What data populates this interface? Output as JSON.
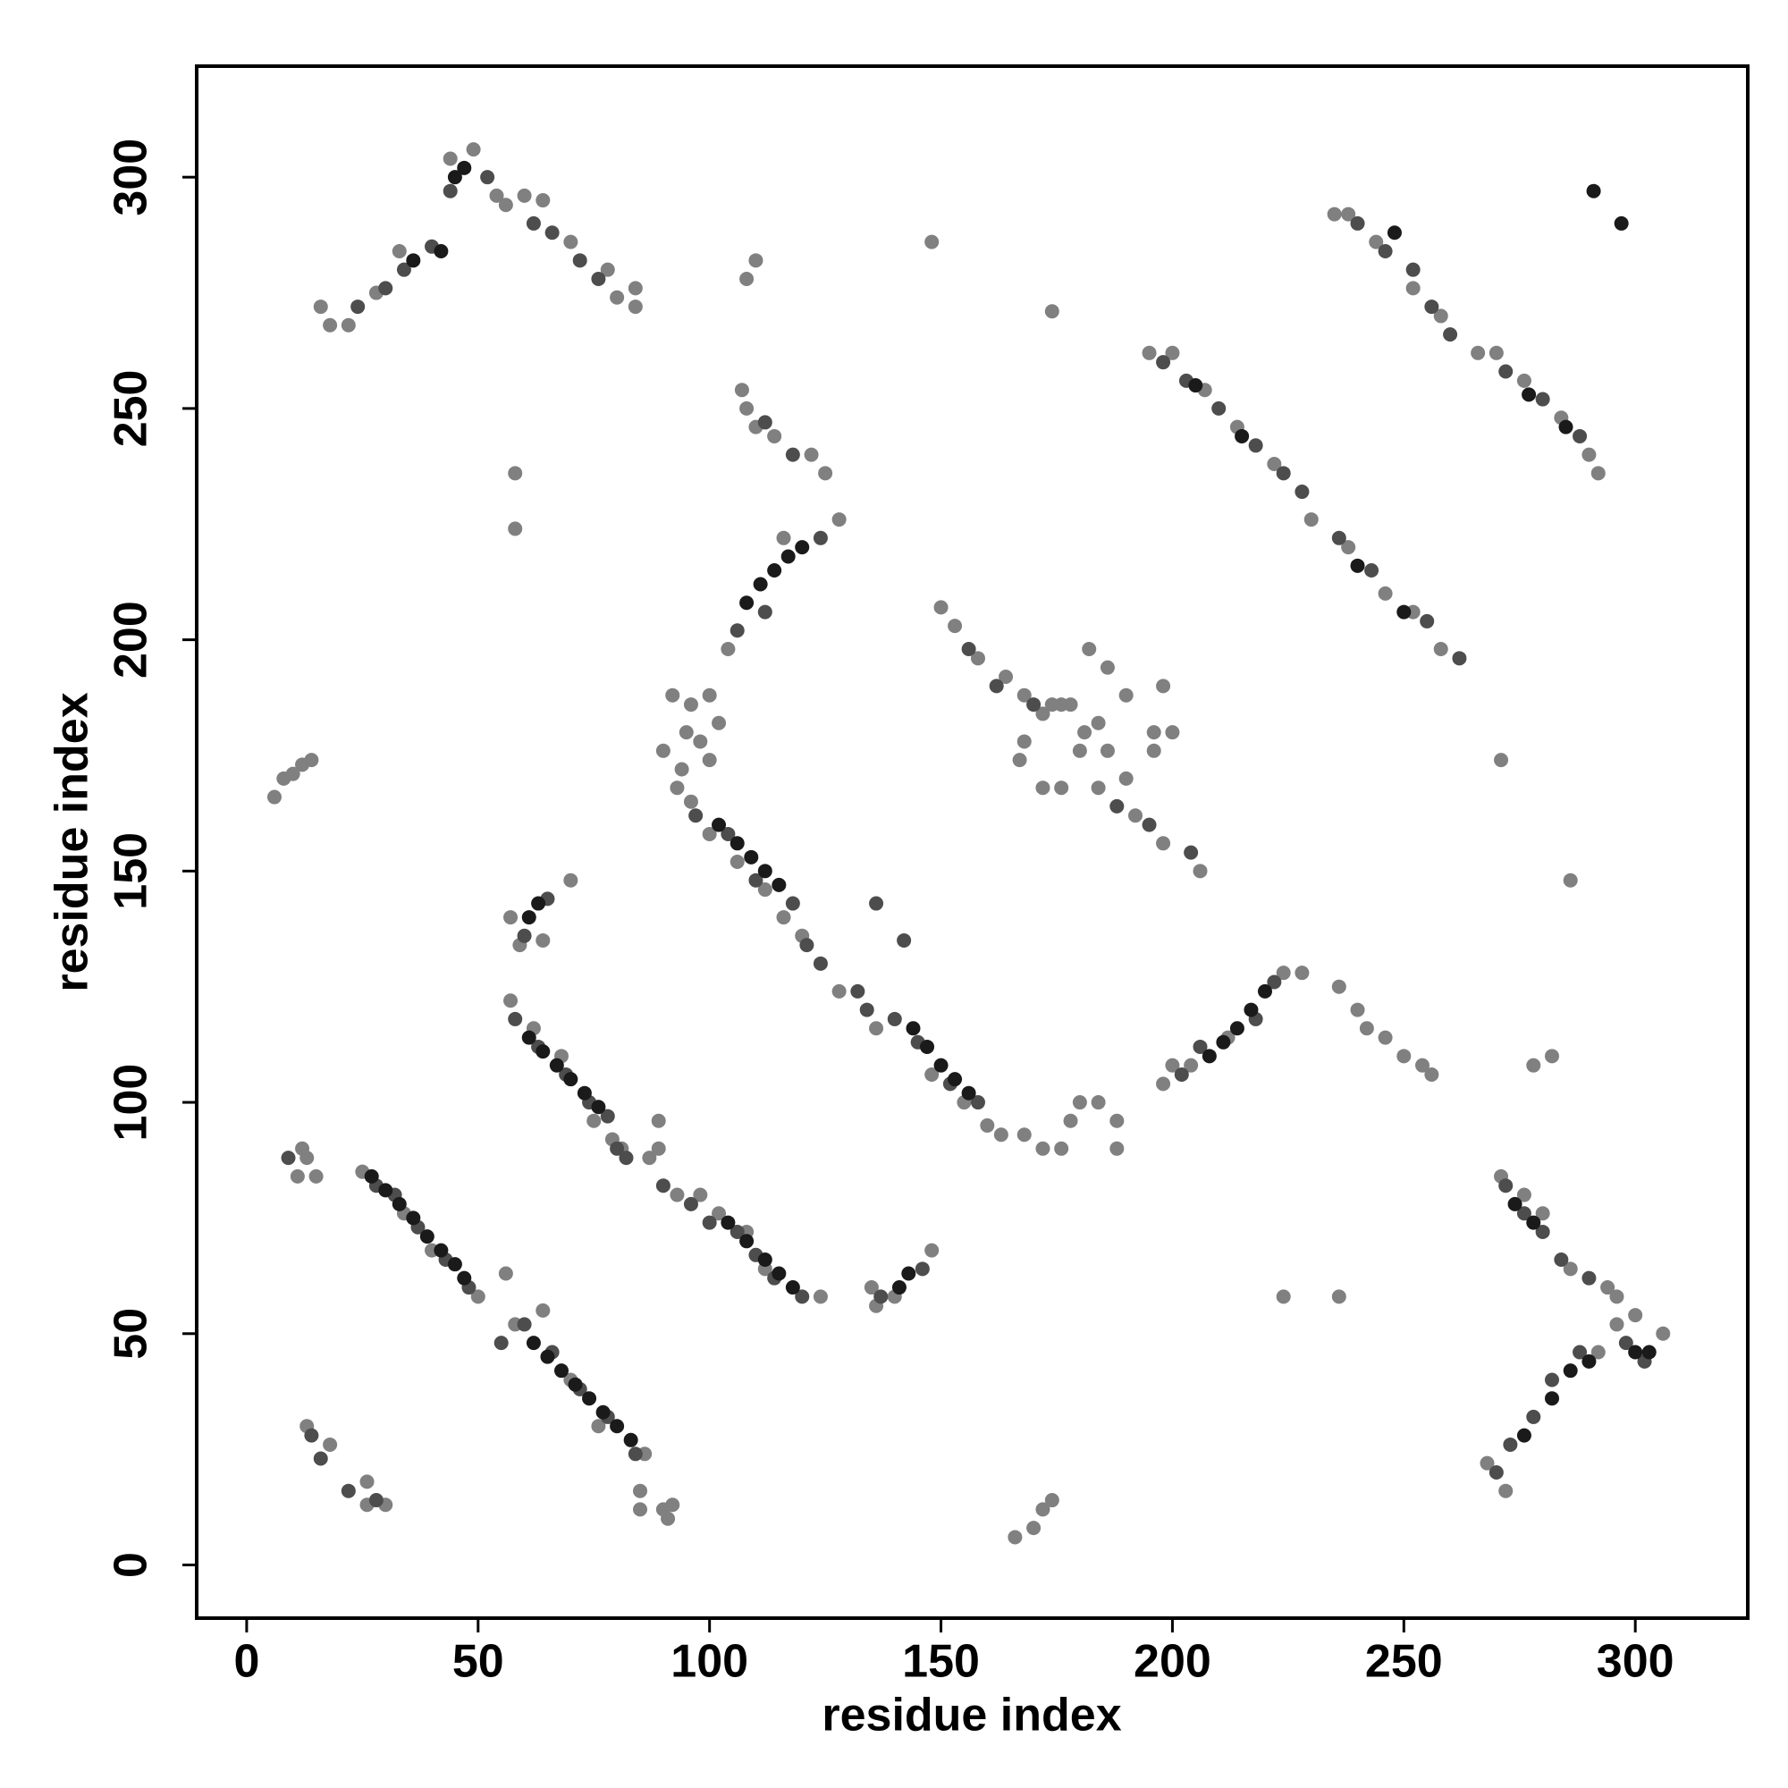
{
  "chart_data": {
    "type": "scatter",
    "xlabel": "residue index",
    "ylabel": "residue index",
    "xlim": [
      -10.8,
      324.3
    ],
    "ylim": [
      -11.5,
      324
    ],
    "xticks": [
      0,
      50,
      100,
      150,
      200,
      250,
      300
    ],
    "yticks": [
      0,
      50,
      100,
      150,
      200,
      250,
      300
    ],
    "grid": false,
    "series": [
      {
        "color": "#808080",
        "x": [
          25,
          34,
          40,
          50,
          56,
          58,
          64,
          70,
          76,
          86,
          85,
          85,
          90,
          91,
          92,
          57,
          62,
          68,
          75,
          79,
          81,
          89,
          89,
          87,
          93,
          98,
          102,
          108,
          112,
          124,
          93,
          96,
          100,
          106,
          112,
          116,
          120,
          128,
          136,
          148,
          155,
          160,
          163,
          168,
          150,
          153,
          158,
          164,
          168,
          172,
          176,
          180,
          184,
          186,
          190,
          192,
          198,
          206,
          182,
          186,
          190,
          196,
          195,
          200,
          207,
          214,
          222,
          230,
          238,
          246,
          252,
          258,
          235,
          238,
          244,
          252,
          258,
          266,
          270,
          276,
          284,
          290,
          292,
          104,
          128,
          116,
          198,
          200,
          204,
          212,
          224,
          228,
          236,
          240,
          242,
          246,
          250,
          254,
          256,
          268,
          272,
          292,
          296,
          300,
          306,
          271,
          276,
          280,
          286,
          294,
          296,
          16,
          18,
          22,
          28,
          33,
          44,
          49,
          54,
          56,
          60,
          64,
          70,
          78,
          80,
          84,
          84,
          107,
          108,
          110,
          114,
          122,
          125,
          108,
          110,
          6,
          8,
          10,
          12,
          14,
          12,
          13,
          11,
          15,
          13,
          18,
          26,
          26,
          30,
          57,
          59,
          64,
          70,
          135,
          136,
          140,
          148,
          58,
          58,
          148,
          174,
          92,
          96,
          98,
          100,
          102,
          95,
          100,
          90,
          94,
          166,
          170,
          172,
          174,
          167,
          168,
          172,
          176,
          174,
          178,
          181,
          184,
          172,
          176,
          178,
          180,
          184,
          188,
          188,
          224,
          236,
          271,
          286,
          278,
          282,
          196,
          198,
          200
        ],
        "values": [
          85,
          76,
          68,
          58,
          63,
          52,
          55,
          40,
          30,
          24,
          16,
          12,
          12,
          10,
          13,
          122,
          116,
          110,
          96,
          92,
          90,
          96,
          90,
          88,
          80,
          80,
          76,
          72,
          64,
          58,
          168,
          165,
          158,
          152,
          146,
          140,
          136,
          124,
          116,
          106,
          100,
          95,
          93,
          93,
          207,
          203,
          196,
          192,
          188,
          184,
          186,
          176,
          168,
          176,
          170,
          162,
          156,
          150,
          198,
          194,
          188,
          180,
          262,
          262,
          254,
          246,
          238,
          226,
          220,
          210,
          206,
          198,
          292,
          292,
          286,
          276,
          270,
          262,
          262,
          256,
          248,
          240,
          236,
          198,
          226,
          222,
          104,
          108,
          108,
          114,
          128,
          128,
          125,
          120,
          116,
          114,
          110,
          108,
          106,
          22,
          16,
          46,
          52,
          54,
          50,
          84,
          80,
          76,
          64,
          60,
          58,
          272,
          268,
          268,
          275,
          284,
          304,
          306,
          296,
          294,
          296,
          295,
          286,
          280,
          274,
          272,
          276,
          254,
          250,
          246,
          244,
          240,
          236,
          278,
          282,
          166,
          170,
          171,
          173,
          174,
          90,
          88,
          84,
          84,
          30,
          26,
          18,
          13,
          13,
          140,
          134,
          135,
          148,
          60,
          56,
          58,
          68,
          236,
          224,
          286,
          271,
          188,
          186,
          178,
          188,
          182,
          180,
          174,
          176,
          172,
          6,
          8,
          12,
          14,
          174,
          178,
          168,
          168,
          186,
          186,
          180,
          182,
          90,
          90,
          96,
          100,
          100,
          96,
          90,
          58,
          58,
          174,
          148,
          108,
          110,
          176,
          190,
          180
        ]
      },
      {
        "color": "#4d4d4d",
        "x": [
          28,
          32,
          37,
          43,
          48,
          55,
          60,
          66,
          72,
          78,
          84,
          58,
          63,
          69,
          74,
          78,
          82,
          80,
          90,
          96,
          100,
          106,
          110,
          114,
          120,
          97,
          104,
          110,
          118,
          121,
          124,
          132,
          134,
          140,
          145,
          152,
          158,
          156,
          162,
          170,
          188,
          195,
          204,
          198,
          203,
          210,
          218,
          224,
          228,
          236,
          243,
          255,
          262,
          240,
          246,
          252,
          256,
          260,
          272,
          280,
          288,
          106,
          112,
          124,
          202,
          206,
          218,
          222,
          270,
          273,
          278,
          282,
          288,
          298,
          302,
          272,
          276,
          280,
          284,
          290,
          24,
          30,
          34,
          40,
          44,
          52,
          62,
          66,
          72,
          76,
          112,
          118,
          60,
          65,
          137,
          146,
          142,
          136,
          9,
          14,
          16,
          22,
          28
        ],
        "values": [
          82,
          80,
          73,
          66,
          60,
          48,
          52,
          46,
          38,
          32,
          24,
          118,
          112,
          106,
          100,
          97,
          88,
          90,
          82,
          78,
          74,
          72,
          67,
          62,
          58,
          162,
          158,
          148,
          143,
          134,
          130,
          124,
          120,
          118,
          113,
          104,
          100,
          198,
          190,
          186,
          164,
          160,
          154,
          260,
          256,
          250,
          242,
          236,
          232,
          222,
          215,
          204,
          196,
          290,
          284,
          280,
          272,
          266,
          258,
          252,
          244,
          202,
          206,
          222,
          106,
          112,
          118,
          126,
          20,
          26,
          32,
          40,
          46,
          48,
          44,
          82,
          76,
          72,
          66,
          62,
          272,
          276,
          280,
          285,
          297,
          300,
          290,
          288,
          282,
          278,
          247,
          240,
          136,
          144,
          58,
          64,
          135,
          143,
          88,
          28,
          23,
          16,
          14
        ]
      },
      {
        "color": "#1a1a1a",
        "x": [
          27,
          30,
          33,
          36,
          39,
          42,
          45,
          47,
          62,
          65,
          68,
          71,
          74,
          77,
          80,
          83,
          61,
          64,
          67,
          70,
          73,
          76,
          104,
          108,
          112,
          115,
          118,
          102,
          106,
          109,
          112,
          115,
          144,
          147,
          150,
          153,
          156,
          108,
          111,
          114,
          117,
          120,
          208,
          211,
          214,
          217,
          220,
          205,
          215,
          250,
          240,
          248,
          285,
          277,
          276,
          282,
          286,
          290,
          300,
          303,
          45,
          47,
          42,
          36,
          143,
          141,
          63,
          61,
          274,
          278,
          291,
          297
        ],
        "values": [
          84,
          81,
          78,
          75,
          71,
          68,
          65,
          62,
          48,
          45,
          42,
          39,
          36,
          33,
          30,
          27,
          114,
          111,
          108,
          105,
          102,
          99,
          74,
          70,
          66,
          63,
          60,
          160,
          156,
          153,
          150,
          147,
          116,
          112,
          108,
          105,
          102,
          208,
          212,
          215,
          218,
          220,
          110,
          113,
          116,
          120,
          124,
          255,
          244,
          206,
          216,
          288,
          246,
          253,
          28,
          36,
          42,
          44,
          46,
          46,
          300,
          302,
          284,
          282,
          63,
          60,
          143,
          140,
          78,
          74,
          297,
          290
        ]
      }
    ]
  }
}
